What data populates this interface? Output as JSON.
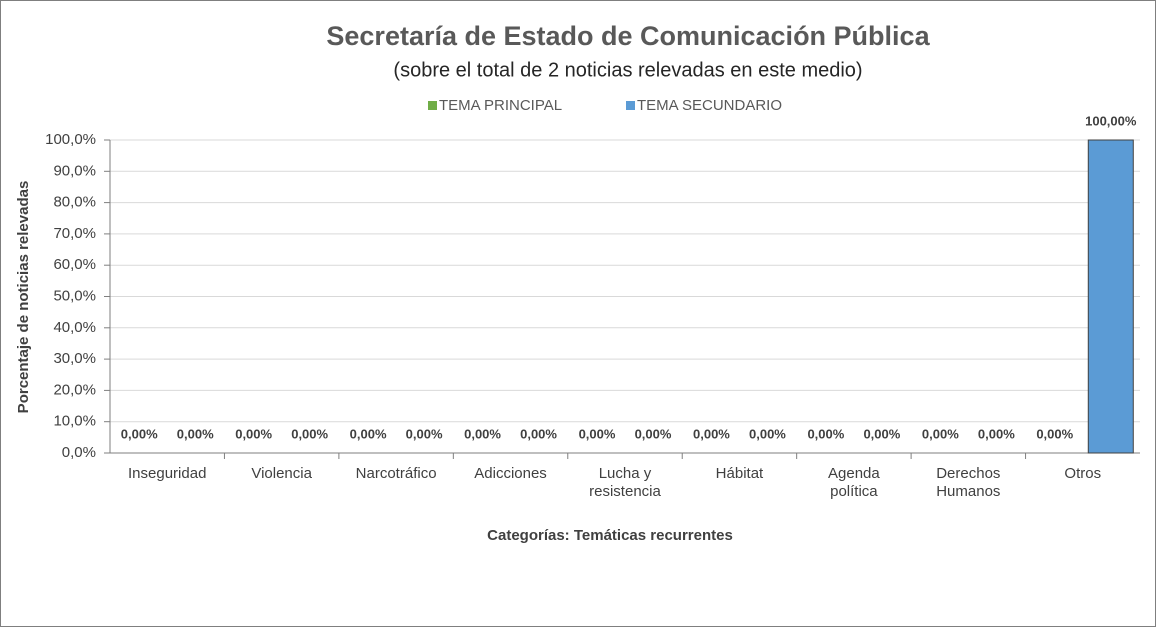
{
  "chart_data": {
    "type": "bar",
    "title": "Secretaría de Estado de Comunicación Pública",
    "subtitle": "(sobre el total de 2 noticias relevadas en este medio)",
    "x_label": "Categorías: Temáticas recurrentes",
    "y_label": "Porcentaje de noticias relevadas",
    "categories": [
      "Inseguridad",
      "Violencia",
      "Narcotráfico",
      "Adicciones",
      "Lucha y\nresistencia",
      "Hábitat",
      "Agenda\npolítica",
      "Derechos\nHumanos",
      "Otros"
    ],
    "series": [
      {
        "name": "TEMA PRINCIPAL",
        "color": "#70ad47",
        "values": [
          0,
          0,
          0,
          0,
          0,
          0,
          0,
          0,
          0
        ],
        "value_labels": [
          "0,00%",
          "0,00%",
          "0,00%",
          "0,00%",
          "0,00%",
          "0,00%",
          "0,00%",
          "0,00%",
          "0,00%"
        ]
      },
      {
        "name": "TEMA SECUNDARIO",
        "color": "#5b9bd5",
        "values": [
          0,
          0,
          0,
          0,
          0,
          0,
          0,
          0,
          100
        ],
        "value_labels": [
          "0,00%",
          "0,00%",
          "0,00%",
          "0,00%",
          "0,00%",
          "0,00%",
          "0,00%",
          "0,00%",
          "100,00%"
        ]
      }
    ],
    "ylim": [
      0,
      100
    ],
    "yticks": [
      {
        "value": 0,
        "label": "0,0%"
      },
      {
        "value": 10,
        "label": "10,0%"
      },
      {
        "value": 20,
        "label": "20,0%"
      },
      {
        "value": 30,
        "label": "30,0%"
      },
      {
        "value": 40,
        "label": "40,0%"
      },
      {
        "value": 50,
        "label": "50,0%"
      },
      {
        "value": 60,
        "label": "60,0%"
      },
      {
        "value": 70,
        "label": "70,0%"
      },
      {
        "value": 80,
        "label": "80,0%"
      },
      {
        "value": 90,
        "label": "90,0%"
      },
      {
        "value": 100,
        "label": "100,0%"
      }
    ],
    "grid": true,
    "legend": "top"
  }
}
